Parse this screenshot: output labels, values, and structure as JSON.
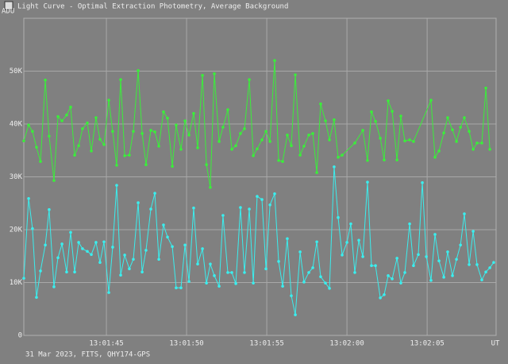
{
  "chart_data": {
    "type": "line",
    "title": "Light Curve - Optimal Extraction Photometry, Average Background",
    "ylabel": "ADU",
    "xlabel": "UT",
    "caption": "31 Mar 2023, FITS, QHY174-GPS",
    "grid": true,
    "xlim": [
      46899.85,
      46929.3
    ],
    "xticks": [
      {
        "value": 46905,
        "label": "13:01:45"
      },
      {
        "value": 46910,
        "label": "13:01:50"
      },
      {
        "value": 46915,
        "label": "13:01:55"
      },
      {
        "value": 46920,
        "label": "13:02:00"
      },
      {
        "value": 46925,
        "label": "13:02:05"
      }
    ],
    "ylim": [
      0,
      60000
    ],
    "yticks": [
      0,
      {
        "value": 10000,
        "label": "10K"
      },
      {
        "value": 20000,
        "label": "20K"
      },
      {
        "value": 30000,
        "label": "30K"
      },
      {
        "value": 40000,
        "label": "40K"
      },
      {
        "value": 50000,
        "label": "50K"
      }
    ],
    "series": [
      {
        "color": "#3aee3a",
        "x": [
          46899.85,
          46900.15,
          46900.39,
          46900.64,
          46900.89,
          46901.19,
          46901.43,
          46901.73,
          46901.98,
          46902.23,
          46902.52,
          46902.77,
          46903.02,
          46903.27,
          46903.51,
          46903.81,
          46904.06,
          46904.35,
          46904.6,
          46904.85,
          46905.15,
          46905.39,
          46905.64,
          46905.89,
          46906.14,
          46906.43,
          46906.68,
          46906.98,
          46907.23,
          46907.47,
          46907.77,
          46908.02,
          46908.27,
          46908.56,
          46908.81,
          46909.11,
          46909.35,
          46909.65,
          46909.9,
          46910.15,
          46910.44,
          46910.69,
          46910.99,
          46911.24,
          46911.48,
          46911.73,
          46912.03,
          46912.27,
          46912.57,
          46912.82,
          46913.07,
          46913.36,
          46913.61,
          46913.91,
          46914.16,
          46914.4,
          46914.7,
          46914.95,
          46915.2,
          46915.49,
          46915.74,
          46915.99,
          46916.28,
          46916.53,
          46916.78,
          46917.08,
          46917.32,
          46917.62,
          46917.87,
          46918.12,
          46918.36,
          46918.66,
          46918.91,
          46919.2,
          46919.45,
          46919.7,
          46920.49,
          46920.99,
          46921.28,
          46921.53,
          46921.78,
          46922.08,
          46922.32,
          46922.57,
          46922.82,
          46923.12,
          46923.36,
          46923.61,
          46923.91,
          46924.15,
          46925.24,
          46925.49,
          46925.74,
          46926.04,
          46926.28,
          46926.58,
          46926.83,
          46927.08,
          46927.32,
          46927.62,
          46927.87,
          46928.11,
          46928.41,
          46928.66,
          46928.91
        ],
        "values": [
          36800,
          39800,
          38600,
          35600,
          32900,
          48300,
          37700,
          29300,
          41400,
          40600,
          41700,
          43200,
          34100,
          35900,
          39100,
          40200,
          34900,
          41200,
          37100,
          36100,
          44500,
          38600,
          32200,
          48400,
          34000,
          34100,
          38600,
          50100,
          38200,
          32300,
          38800,
          38500,
          35800,
          42300,
          41100,
          32000,
          39800,
          35200,
          40600,
          37900,
          42000,
          35500,
          49200,
          32300,
          28000,
          49500,
          36700,
          39400,
          42700,
          35200,
          35900,
          38200,
          39100,
          48400,
          34000,
          35300,
          37000,
          38600,
          36700,
          52000,
          33100,
          32900,
          37900,
          35900,
          49300,
          34100,
          35800,
          37900,
          38200,
          30800,
          43800,
          40600,
          37000,
          40800,
          33700,
          34100,
          36400,
          38800,
          33100,
          42300,
          40500,
          37300,
          33200,
          44400,
          42400,
          33200,
          41500,
          36800,
          37000,
          36700,
          44500,
          33700,
          34900,
          38300,
          41200,
          38900,
          36700,
          39400,
          41200,
          38600,
          35200,
          36400,
          36400,
          46800,
          35200
        ]
      },
      {
        "color": "#3aeeee",
        "x": [
          46899.85,
          46900.15,
          46900.39,
          46900.64,
          46900.89,
          46901.19,
          46901.43,
          46901.73,
          46901.98,
          46902.23,
          46902.52,
          46902.77,
          46903.02,
          46903.27,
          46903.51,
          46903.81,
          46904.06,
          46904.35,
          46904.6,
          46904.85,
          46905.15,
          46905.39,
          46905.64,
          46905.89,
          46906.14,
          46906.43,
          46906.68,
          46906.98,
          46907.23,
          46907.47,
          46907.77,
          46908.02,
          46908.27,
          46908.56,
          46908.81,
          46909.11,
          46909.35,
          46909.65,
          46909.9,
          46910.15,
          46910.44,
          46910.69,
          46910.99,
          46911.24,
          46911.48,
          46911.73,
          46912.03,
          46912.27,
          46912.57,
          46912.82,
          46913.07,
          46913.36,
          46913.61,
          46913.91,
          46914.16,
          46914.4,
          46914.7,
          46914.95,
          46915.2,
          46915.49,
          46915.74,
          46915.99,
          46916.28,
          46916.53,
          46916.78,
          46917.08,
          46917.32,
          46917.62,
          46917.87,
          46918.12,
          46918.36,
          46918.66,
          46918.91,
          46919.2,
          46919.45,
          46919.7,
          46920.0,
          46920.24,
          46920.49,
          46920.74,
          46920.99,
          46921.28,
          46921.53,
          46921.78,
          46922.08,
          46922.32,
          46922.57,
          46922.82,
          46923.12,
          46923.36,
          46923.61,
          46923.91,
          46924.15,
          46924.45,
          46924.7,
          46924.95,
          46925.24,
          46925.49,
          46925.74,
          46926.04,
          46926.28,
          46926.58,
          46926.83,
          46927.08,
          46927.32,
          46927.62,
          46927.87,
          46928.11,
          46928.41,
          46928.66,
          46928.91,
          46929.15
        ],
        "values": [
          10800,
          25900,
          20200,
          7200,
          12200,
          17100,
          23800,
          9200,
          14700,
          17300,
          12000,
          19500,
          12000,
          17600,
          16400,
          15900,
          15300,
          17600,
          13800,
          17700,
          8100,
          16700,
          28400,
          11400,
          15200,
          12600,
          14400,
          25100,
          12000,
          16100,
          23900,
          26900,
          14400,
          20900,
          18600,
          16800,
          9000,
          9000,
          17100,
          10200,
          24100,
          13500,
          16400,
          9900,
          13500,
          11300,
          9300,
          22700,
          11900,
          11900,
          9800,
          24200,
          11900,
          23900,
          9900,
          26300,
          25700,
          12600,
          24700,
          26800,
          14000,
          9300,
          18300,
          7500,
          3900,
          15800,
          10100,
          11900,
          12800,
          17700,
          11100,
          9900,
          8900,
          31900,
          22300,
          15200,
          17600,
          21100,
          11900,
          18000,
          14900,
          29000,
          13200,
          13200,
          7100,
          7700,
          11300,
          10700,
          14600,
          9900,
          11900,
          21100,
          13200,
          15300,
          28900,
          14900,
          10400,
          19100,
          14100,
          11000,
          15800,
          11300,
          14400,
          17100,
          23000,
          13400,
          19700,
          13400,
          10500,
          12000,
          12800,
          13800
        ]
      }
    ]
  }
}
